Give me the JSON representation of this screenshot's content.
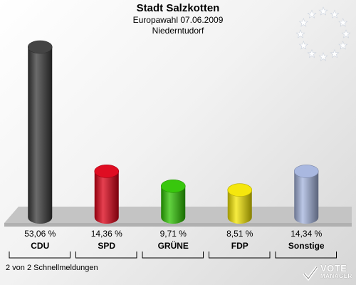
{
  "header": {
    "title": "Stadt Salzkotten",
    "subtitle": "Europawahl 07.06.2009",
    "location": "Niederntudorf"
  },
  "footer": {
    "status": "2 von 2 Schnellmeldungen",
    "logo_text": "VOTE",
    "logo_sub": "MANAGER"
  },
  "chart_data": {
    "type": "bar",
    "categories": [
      "CDU",
      "SPD",
      "GRÜNE",
      "FDP",
      "Sonstige"
    ],
    "values": [
      53.06,
      14.36,
      9.71,
      8.51,
      14.34
    ],
    "value_labels": [
      "53,06 %",
      "14,36 %",
      "9,71 %",
      "8,51 %",
      "14,34 %"
    ],
    "colors": [
      "#3a3a3a",
      "#dd0016",
      "#2ec400",
      "#f4e600",
      "#a4b4de"
    ],
    "ylim": [
      0,
      55
    ],
    "grid": false,
    "legend": "none"
  }
}
